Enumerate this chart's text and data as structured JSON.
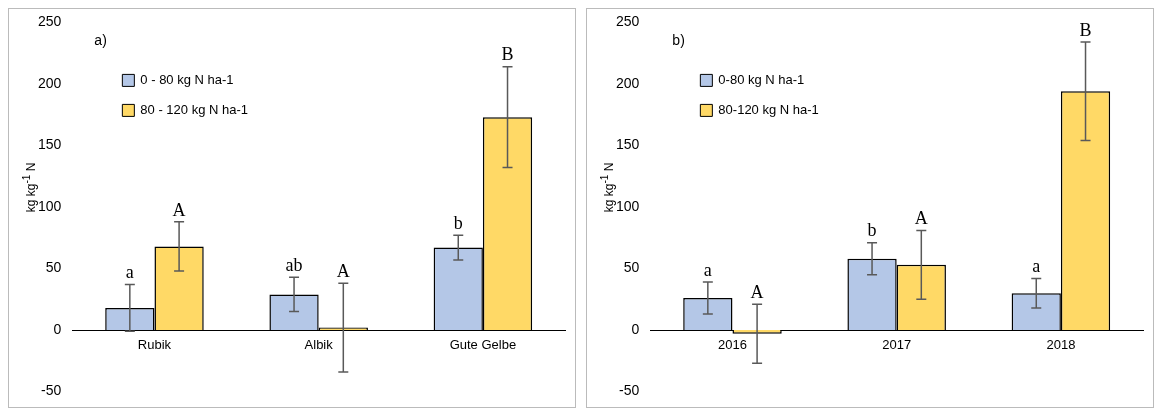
{
  "chart_data": [
    {
      "type": "bar",
      "title": "a)",
      "ylabel": "kg kg$^{-1}$ N",
      "categories": [
        "Rubik",
        "Albik",
        "Gute Gelbe"
      ],
      "ylim": [
        -50,
        250
      ],
      "yticks": [
        -50,
        0,
        50,
        100,
        150,
        200,
        250
      ],
      "grid": false,
      "legend": "top left",
      "series": [
        {
          "name": "0 - 80 kg N ha-1",
          "color": "#b4c7e7",
          "values": [
            18,
            29,
            67
          ],
          "errors": [
            19,
            14,
            10
          ],
          "value_labels": [
            "a",
            "ab",
            "b"
          ]
        },
        {
          "name": "80 - 120 kg N ha-1",
          "color": "#ffd966",
          "values": [
            68,
            2,
            173
          ],
          "errors": [
            20,
            36,
            41
          ],
          "value_labels": [
            "A",
            "A",
            "B"
          ]
        }
      ]
    },
    {
      "type": "bar",
      "title": "b)",
      "ylabel": "kg kg$^{-1}$ N",
      "categories": [
        "2016",
        "2017",
        "2018"
      ],
      "ylim": [
        -50,
        250
      ],
      "yticks": [
        -50,
        0,
        50,
        100,
        150,
        200,
        250
      ],
      "grid": false,
      "legend": "top left",
      "series": [
        {
          "name": "0-80 kg N ha-1",
          "color": "#b4c7e7",
          "values": [
            26,
            58,
            30
          ],
          "errors": [
            13,
            13,
            12
          ],
          "value_labels": [
            "a",
            "b",
            "a"
          ]
        },
        {
          "name": "80-120 kg N ha-1",
          "color": "#ffd966",
          "values": [
            -3,
            53,
            194
          ],
          "errors": [
            24,
            28,
            40
          ],
          "value_labels": [
            "A",
            "A",
            "B"
          ]
        }
      ]
    }
  ]
}
